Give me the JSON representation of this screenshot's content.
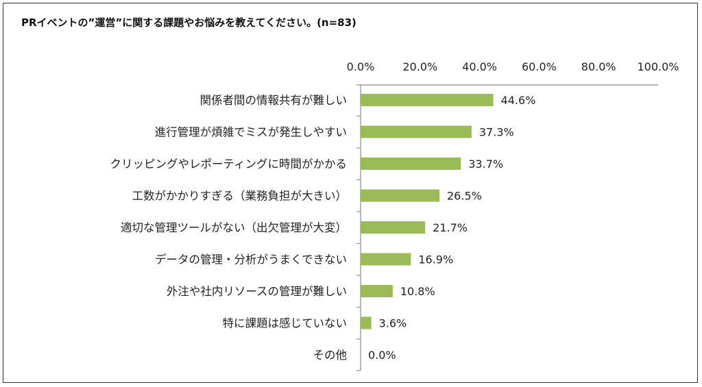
{
  "title": "PRイベントの”運営”に関する課題やお悩みを教えてください。(n=83)",
  "colors": {
    "bar": "#9bbb59",
    "axis": "#8c8c8c"
  },
  "chart_data": {
    "type": "bar",
    "orientation": "horizontal",
    "categories": [
      "関係者間の情報共有が難しい",
      "進行管理が煩雑でミスが発生しやすい",
      "クリッピングやレポーティングに時間がかかる",
      "工数がかかりすぎる（業務負担が大きい）",
      "適切な管理ツールがない（出欠管理が大変）",
      "データの管理・分析がうまくできない",
      "外注や社内リソースの管理が難しい",
      "特に課題は感じていない",
      "その他"
    ],
    "values": [
      44.6,
      37.3,
      33.7,
      26.5,
      21.7,
      16.9,
      10.8,
      3.6,
      0.0
    ],
    "data_labels": [
      "44.6%",
      "37.3%",
      "33.7%",
      "26.5%",
      "21.7%",
      "16.9%",
      "10.8%",
      "3.6%",
      "0.0%"
    ],
    "xlim": [
      0,
      100
    ],
    "ticks": [
      0,
      20,
      40,
      60,
      80,
      100
    ],
    "tick_labels": [
      "0.0%",
      "20.0%",
      "40.0%",
      "60.0%",
      "80.0%",
      "100.0%"
    ],
    "axis_position": "top",
    "grid": false,
    "legend": "none"
  }
}
